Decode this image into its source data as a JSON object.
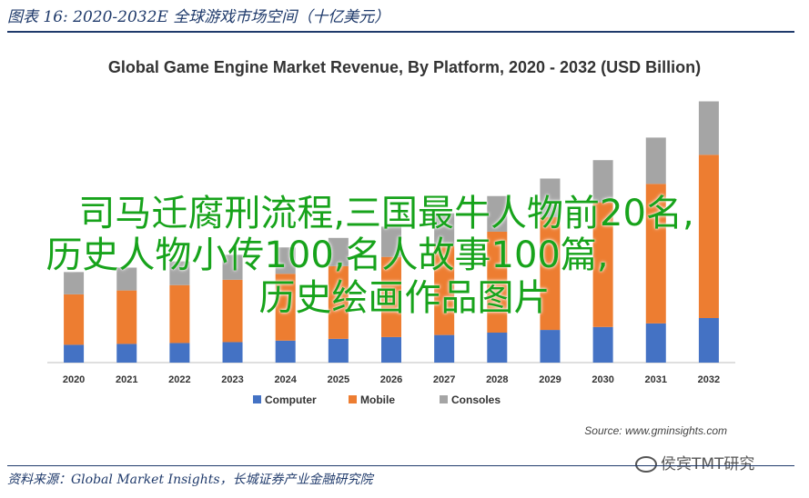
{
  "header": {
    "caption": "图表 16:  2020-2032E 全球游戏市场空间（十亿美元）"
  },
  "footer": {
    "source_text": "资料来源：Global Market Insights，长城证券产业金融研究院"
  },
  "overlay": {
    "line1": "司马迁腐刑流程,三国最牛人物前20名,",
    "line2": "历史人物小传100,名人故事100篇,",
    "line3": "历史绘画作品图片"
  },
  "watermark": {
    "text": "侯宾TMT研究",
    "icon": "wechat-icon"
  },
  "chart_data": {
    "type": "bar",
    "stacked": true,
    "title": "Global Game Engine Market Revenue, By Platform, 2020 - 2032 (USD Billion)",
    "source": "Source: www.gminsights.com",
    "categories": [
      "2020",
      "2021",
      "2022",
      "2023",
      "2024",
      "2025",
      "2026",
      "2027",
      "2028",
      "2029",
      "2030",
      "2031",
      "2032"
    ],
    "series": [
      {
        "name": "Computer",
        "color": "#4472c4",
        "values": [
          6.0,
          6.3,
          6.6,
          6.9,
          7.4,
          8.0,
          8.6,
          9.3,
          10.1,
          11.0,
          12.0,
          13.2,
          15.0
        ]
      },
      {
        "name": "Mobile",
        "color": "#ed7d31",
        "values": [
          17.0,
          18.0,
          19.5,
          21.0,
          22.5,
          24.5,
          27.0,
          30.0,
          34.0,
          38.0,
          42.0,
          47.0,
          55.0
        ]
      },
      {
        "name": "Consoles",
        "color": "#a5a5a5",
        "values": [
          7.5,
          7.7,
          8.0,
          8.4,
          8.9,
          9.5,
          10.2,
          11.0,
          12.0,
          13.0,
          14.2,
          15.6,
          18.0
        ]
      }
    ],
    "ylim": [
      0,
      90
    ],
    "legend": "bottom",
    "grid": false
  }
}
